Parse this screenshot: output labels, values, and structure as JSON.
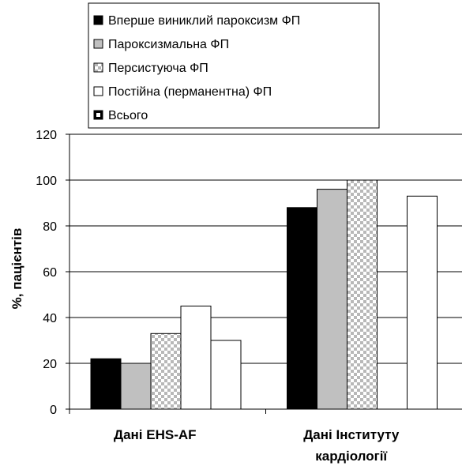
{
  "chart_data": {
    "type": "bar",
    "categories": [
      "Дані EHS-AF",
      "Дані Інституту кардіології"
    ],
    "category_lines": [
      [
        "Дані EHS-AF"
      ],
      [
        "Дані Інституту",
        "кардіології"
      ]
    ],
    "series": [
      {
        "name": "Вперше виниклий пароксизм ФП",
        "values": [
          22,
          88
        ],
        "fill": "#000000",
        "pattern": "solid"
      },
      {
        "name": "Пароксизмальна ФП",
        "values": [
          20,
          96
        ],
        "fill": "#c0c0c0",
        "pattern": "solid"
      },
      {
        "name": "Персистуюча ФП",
        "values": [
          33,
          100
        ],
        "fill": "#d9d9d9",
        "pattern": "checker"
      },
      {
        "name": "Постійна (перманентна) ФП",
        "values": [
          45,
          0
        ],
        "fill": "#ffffff",
        "pattern": "solid"
      },
      {
        "name": "Всього",
        "values": [
          30,
          93
        ],
        "fill": "#ffffff",
        "pattern": "solid"
      }
    ],
    "ylabel": "%, пацієнтів",
    "ylim": [
      0,
      120
    ],
    "yticks": [
      0,
      20,
      40,
      60,
      80,
      100,
      120
    ],
    "grid": true,
    "legend_position": "top"
  },
  "legend_markers": [
    {
      "fill": "#000000",
      "pattern": "solid"
    },
    {
      "fill": "#c0c0c0",
      "pattern": "solid"
    },
    {
      "fill": "#d9d9d9",
      "pattern": "checker"
    },
    {
      "fill": "#ffffff",
      "pattern": "solid"
    },
    {
      "fill": "#000000",
      "pattern": "inner-white"
    }
  ]
}
